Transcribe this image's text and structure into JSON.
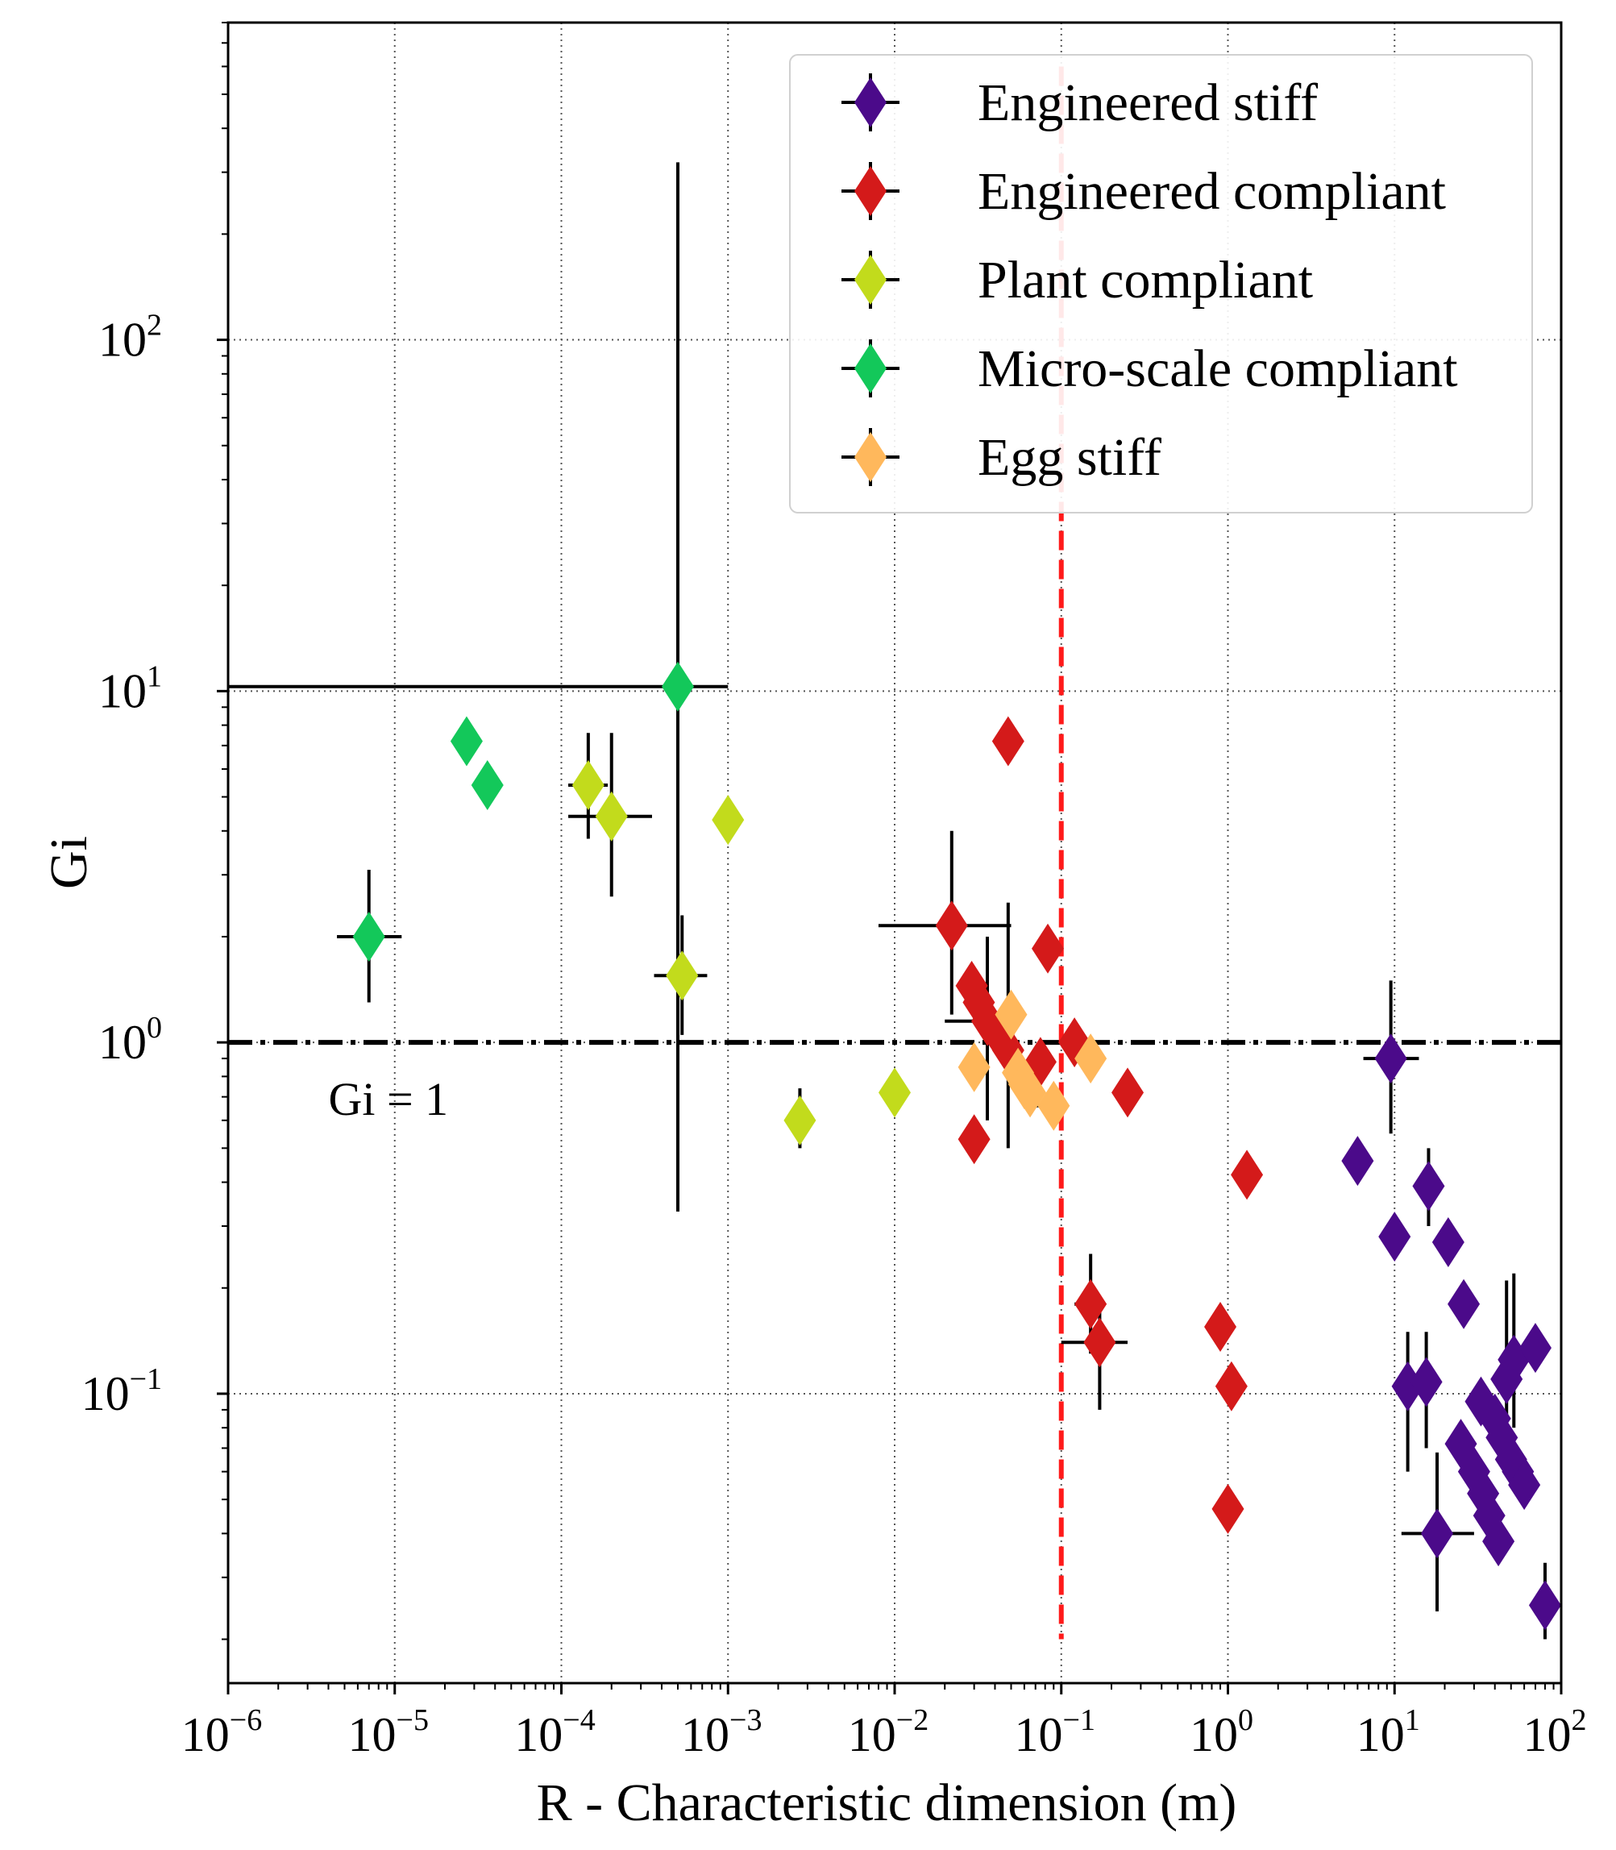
{
  "chart_data": {
    "type": "scatter",
    "xscale": "log",
    "yscale": "log",
    "xlim": [
      1e-06,
      100
    ],
    "ylim": [
      0.015,
      800
    ],
    "xlabel": "R - Characteristic dimension (m)",
    "ylabel": "Gi",
    "xticks": [
      {
        "base": "10",
        "exp": "−6",
        "value": 1e-06
      },
      {
        "base": "10",
        "exp": "−5",
        "value": 1e-05
      },
      {
        "base": "10",
        "exp": "−4",
        "value": 0.0001
      },
      {
        "base": "10",
        "exp": "−3",
        "value": 0.001
      },
      {
        "base": "10",
        "exp": "−2",
        "value": 0.01
      },
      {
        "base": "10",
        "exp": "−1",
        "value": 0.1
      },
      {
        "base": "10",
        "exp": "0",
        "value": 1
      },
      {
        "base": "10",
        "exp": "1",
        "value": 10
      },
      {
        "base": "10",
        "exp": "2",
        "value": 100
      }
    ],
    "yticks": [
      {
        "base": "10",
        "exp": "−1",
        "value": 0.1
      },
      {
        "base": "10",
        "exp": "0",
        "value": 1
      },
      {
        "base": "10",
        "exp": "1",
        "value": 10
      },
      {
        "base": "10",
        "exp": "2",
        "value": 100
      }
    ],
    "grid": true,
    "legend_position": "top-right",
    "reference_lines": [
      {
        "orientation": "horizontal",
        "value": 1,
        "style": "dash-dot",
        "color": "#000000",
        "label": "Gi = 1"
      },
      {
        "orientation": "vertical",
        "value": 0.1,
        "style": "dashed",
        "color": "#ff1a1a",
        "range": [
          0.02,
          1
        ]
      }
    ],
    "series": [
      {
        "name": "Engineered stiff",
        "color": "#4b0a8a",
        "points": [
          {
            "x": 9.5,
            "y": 0.9,
            "xerr": [
              6.5,
              14
            ],
            "yerr": [
              0.55,
              1.5
            ]
          },
          {
            "x": 6,
            "y": 0.46
          },
          {
            "x": 10,
            "y": 0.28
          },
          {
            "x": 16,
            "y": 0.39,
            "yerr": [
              0.3,
              0.5
            ]
          },
          {
            "x": 21,
            "y": 0.27
          },
          {
            "x": 26,
            "y": 0.18
          },
          {
            "x": 12,
            "y": 0.105,
            "yerr": [
              0.06,
              0.15
            ]
          },
          {
            "x": 15.5,
            "y": 0.108,
            "yerr": [
              0.07,
              0.15
            ]
          },
          {
            "x": 33,
            "y": 0.095
          },
          {
            "x": 25,
            "y": 0.072
          },
          {
            "x": 30,
            "y": 0.06
          },
          {
            "x": 34,
            "y": 0.052
          },
          {
            "x": 37,
            "y": 0.045
          },
          {
            "x": 42,
            "y": 0.038
          },
          {
            "x": 40,
            "y": 0.085
          },
          {
            "x": 44,
            "y": 0.075
          },
          {
            "x": 47,
            "y": 0.11,
            "yerr": [
              0.06,
              0.21
            ]
          },
          {
            "x": 52,
            "y": 0.125,
            "yerr": [
              0.08,
              0.22
            ]
          },
          {
            "x": 50,
            "y": 0.065
          },
          {
            "x": 55,
            "y": 0.06
          },
          {
            "x": 60,
            "y": 0.055
          },
          {
            "x": 70,
            "y": 0.135
          },
          {
            "x": 18,
            "y": 0.04,
            "xerr": [
              11,
              30
            ],
            "yerr": [
              0.024,
              0.068
            ]
          },
          {
            "x": 80,
            "y": 0.025,
            "yerr": [
              0.02,
              0.033
            ]
          }
        ]
      },
      {
        "name": "Engineered compliant",
        "color": "#d41a1a",
        "points": [
          {
            "x": 0.048,
            "y": 7.2
          },
          {
            "x": 0.022,
            "y": 2.15,
            "xerr": [
              0.008,
              0.05
            ],
            "yerr": [
              1.2,
              4
            ]
          },
          {
            "x": 0.083,
            "y": 1.85
          },
          {
            "x": 0.029,
            "y": 1.45
          },
          {
            "x": 0.032,
            "y": 1.3
          },
          {
            "x": 0.036,
            "y": 1.15,
            "xerr": [
              0.02,
              0.05
            ],
            "yerr": [
              0.6,
              2
            ]
          },
          {
            "x": 0.042,
            "y": 1.05
          },
          {
            "x": 0.048,
            "y": 0.95,
            "yerr": [
              0.5,
              2.5
            ]
          },
          {
            "x": 0.075,
            "y": 0.88
          },
          {
            "x": 0.12,
            "y": 1.0
          },
          {
            "x": 0.25,
            "y": 0.72
          },
          {
            "x": 0.03,
            "y": 0.53
          },
          {
            "x": 1.3,
            "y": 0.42
          },
          {
            "x": 0.15,
            "y": 0.18,
            "xerr": [
              0.12,
              0.18
            ],
            "yerr": [
              0.13,
              0.25
            ]
          },
          {
            "x": 0.17,
            "y": 0.14,
            "xerr": [
              0.1,
              0.25
            ],
            "yerr": [
              0.09,
              0.18
            ]
          },
          {
            "x": 0.9,
            "y": 0.155
          },
          {
            "x": 1.05,
            "y": 0.105
          },
          {
            "x": 1.0,
            "y": 0.047
          }
        ]
      },
      {
        "name": "Plant compliant",
        "color": "#c2db1c",
        "points": [
          {
            "x": 0.000145,
            "y": 5.4,
            "xerr": [
              0.00011,
              0.00019
            ],
            "yerr": [
              3.8,
              7.6
            ]
          },
          {
            "x": 0.0002,
            "y": 4.4,
            "xerr": [
              0.00011,
              0.00035
            ],
            "yerr": [
              2.6,
              7.6
            ]
          },
          {
            "x": 0.001,
            "y": 4.3
          },
          {
            "x": 0.00053,
            "y": 1.55,
            "xerr": [
              0.00036,
              0.00075
            ],
            "yerr": [
              1.05,
              2.3
            ]
          },
          {
            "x": 0.0027,
            "y": 0.6,
            "yerr": [
              0.5,
              0.74
            ]
          },
          {
            "x": 0.01,
            "y": 0.72
          }
        ]
      },
      {
        "name": "Micro-scale compliant",
        "color": "#13c85a",
        "points": [
          {
            "x": 7e-06,
            "y": 2.0,
            "xerr": [
              4.5e-06,
              1.1e-05
            ],
            "yerr": [
              1.3,
              3.1
            ]
          },
          {
            "x": 2.7e-05,
            "y": 7.2
          },
          {
            "x": 3.6e-05,
            "y": 5.4
          },
          {
            "x": 0.0005,
            "y": 10.3,
            "xerr": [
              1e-06,
              0.001
            ],
            "yerr": [
              0.33,
              320
            ]
          }
        ]
      },
      {
        "name": "Egg stiff",
        "color": "#ffb85c",
        "points": [
          {
            "x": 0.05,
            "y": 1.2
          },
          {
            "x": 0.03,
            "y": 0.85
          },
          {
            "x": 0.055,
            "y": 0.82
          },
          {
            "x": 0.06,
            "y": 0.76
          },
          {
            "x": 0.065,
            "y": 0.72
          },
          {
            "x": 0.09,
            "y": 0.66,
            "xerr": [
              0.07,
              0.11
            ]
          },
          {
            "x": 0.15,
            "y": 0.9
          }
        ]
      }
    ]
  }
}
